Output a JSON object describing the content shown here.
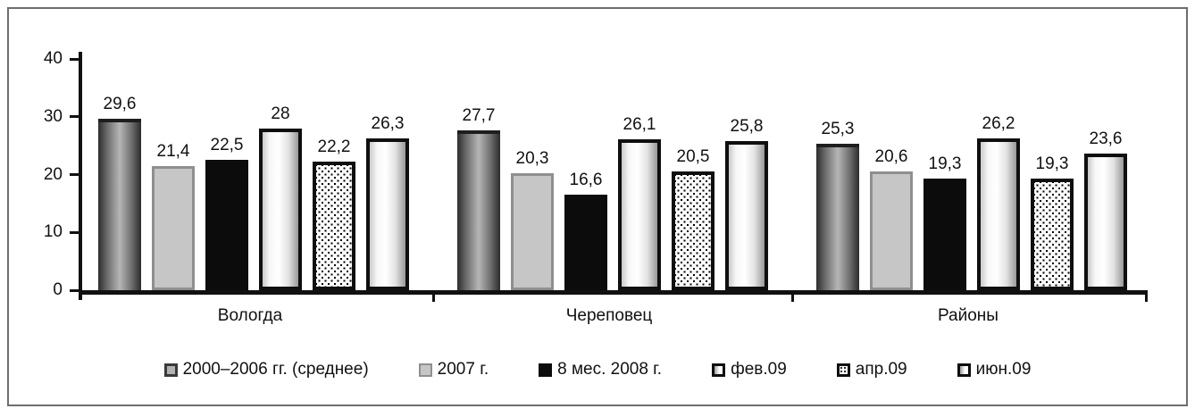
{
  "chart_data": {
    "type": "bar",
    "title": "",
    "xlabel": "",
    "ylabel": "",
    "categories": [
      "Вологда",
      "Череповец",
      "Районы"
    ],
    "series": [
      {
        "name": "2000–2006 гг. (среднее)",
        "style": "gray-cylinder",
        "values": [
          29.6,
          27.7,
          25.3
        ],
        "labels": [
          "29,6",
          "27,7",
          "25,3"
        ]
      },
      {
        "name": "2007 г.",
        "style": "flat-lightgray",
        "values": [
          21.4,
          20.3,
          20.6
        ],
        "labels": [
          "21,4",
          "20,3",
          "20,6"
        ]
      },
      {
        "name": "8 мес. 2008 г.",
        "style": "solid-black",
        "values": [
          22.5,
          16.6,
          19.3
        ],
        "labels": [
          "22,5",
          "16,6",
          "19,3"
        ]
      },
      {
        "name": "фев.09",
        "style": "white-cylinder",
        "values": [
          28.0,
          26.1,
          26.2
        ],
        "labels": [
          "28",
          "26,1",
          "26,2"
        ]
      },
      {
        "name": "апр.09",
        "style": "dotted",
        "values": [
          22.2,
          20.5,
          19.3
        ],
        "labels": [
          "22,2",
          "20,5",
          "19,3"
        ]
      },
      {
        "name": "июн.09",
        "style": "white-cylinder",
        "values": [
          26.3,
          25.8,
          23.6
        ],
        "labels": [
          "26,3",
          "25,8",
          "23,6"
        ]
      }
    ],
    "y_axis": {
      "min": 0,
      "max": 40,
      "ticks": [
        0,
        10,
        20,
        30,
        40
      ]
    },
    "grid": false,
    "legend_position": "bottom",
    "colors": {
      "axis": "#111111",
      "frame_border": "#6e6e6e",
      "text": "#111111"
    }
  }
}
